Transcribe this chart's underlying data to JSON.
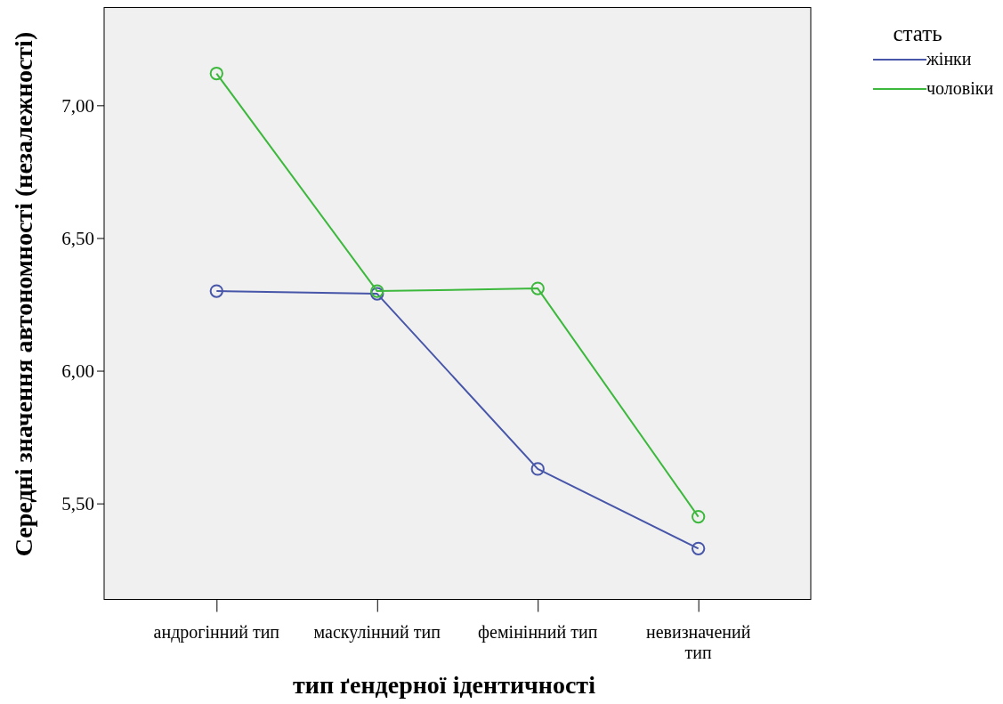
{
  "chart_data": {
    "type": "line",
    "xlabel": "тип ґендерної ідентичності",
    "ylabel": "Середні значення автономності (незалежності)",
    "legend_title": "стать",
    "categories": [
      "андрогінний тип",
      "маскулінний тип",
      "фемінінний тип",
      "невизначений тип"
    ],
    "series": [
      {
        "name": "жінки",
        "color": "#4756a8",
        "values": [
          6.3,
          6.29,
          5.63,
          5.33
        ]
      },
      {
        "name": "чоловіки",
        "color": "#3cb83c",
        "values": [
          7.12,
          6.3,
          6.31,
          5.45
        ]
      }
    ],
    "ylim": [
      5.14,
      7.37
    ],
    "yticks": [
      {
        "value": 5.5,
        "label": "5,50"
      },
      {
        "value": 6,
        "label": "6,00"
      },
      {
        "value": 6.5,
        "label": "6,50"
      },
      {
        "value": 7,
        "label": "7,00"
      }
    ],
    "grid": false,
    "legend": "top right",
    "marker": "circle",
    "line_style": "solid"
  }
}
